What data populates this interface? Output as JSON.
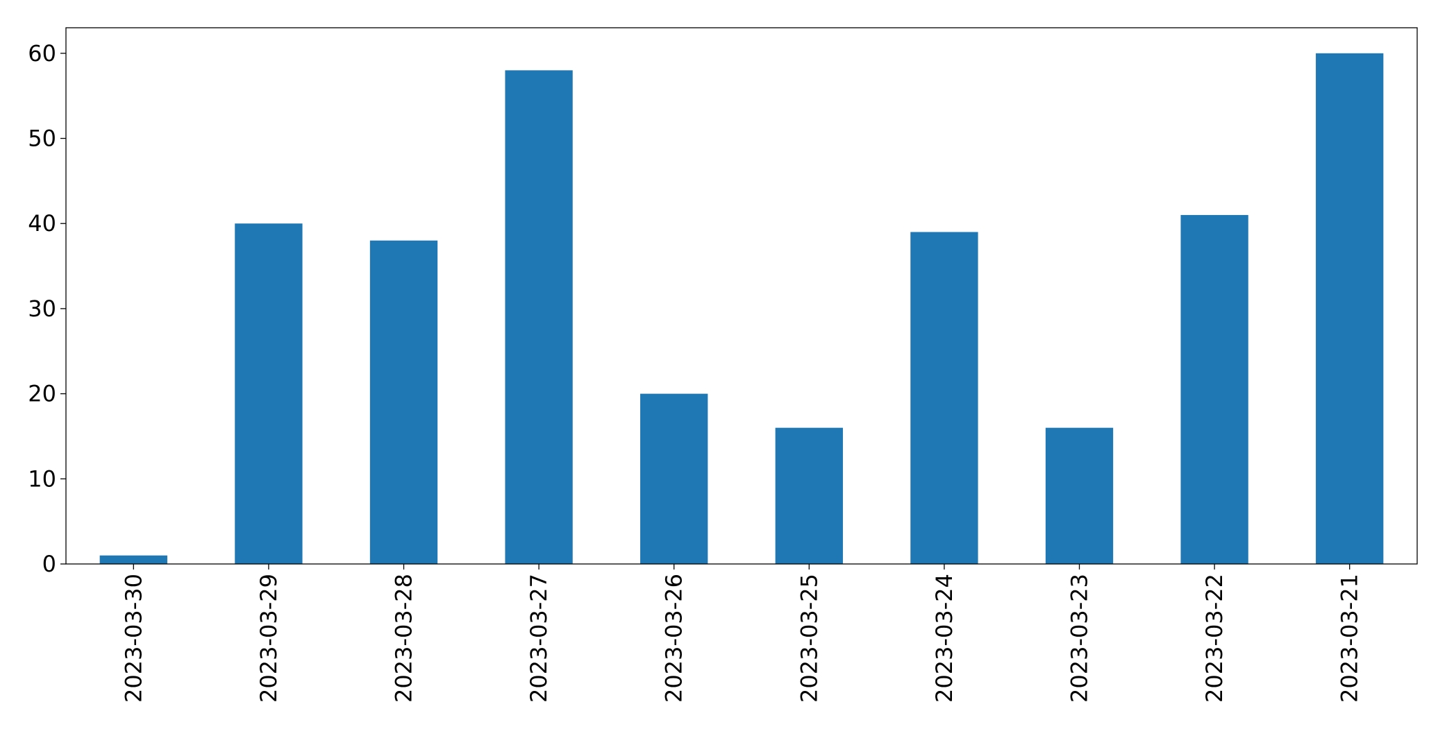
{
  "chart_data": {
    "type": "bar",
    "categories": [
      "2023-03-30",
      "2023-03-29",
      "2023-03-28",
      "2023-03-27",
      "2023-03-26",
      "2023-03-25",
      "2023-03-24",
      "2023-03-23",
      "2023-03-22",
      "2023-03-21"
    ],
    "values": [
      1,
      40,
      38,
      58,
      20,
      16,
      39,
      16,
      41,
      60
    ],
    "title": "",
    "xlabel": "",
    "ylabel": "",
    "ylim": [
      0,
      63
    ],
    "yticks": [
      0,
      10,
      20,
      30,
      40,
      50,
      60
    ],
    "grid": false,
    "legend": "none",
    "bar_color": "#1f77b4",
    "xtick_rotation": "vertical"
  }
}
